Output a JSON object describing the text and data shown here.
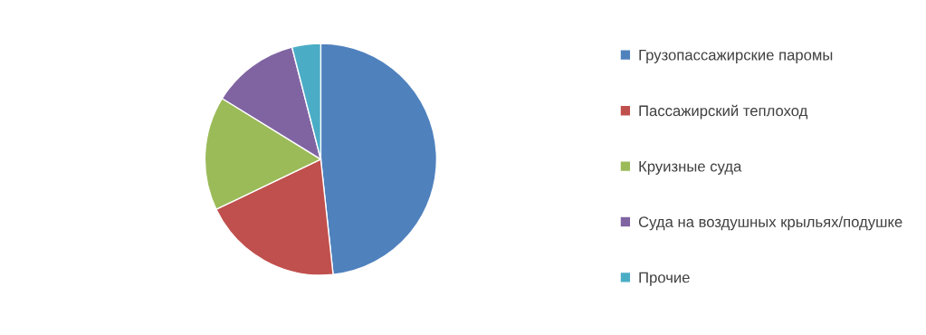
{
  "chart_data": {
    "type": "pie",
    "categories": [
      "Грузопассажирские паромы",
      "Пассажирский теплоход",
      "Круизные суда",
      "Суда на воздушных крыльях/подушке",
      "Прочие"
    ],
    "values": [
      48.3,
      19.6,
      15.9,
      12.2,
      4.0
    ],
    "colors": [
      "#4f81bd",
      "#c0504d",
      "#9bbb59",
      "#8064a2",
      "#4bacc6"
    ],
    "legend": "right"
  }
}
